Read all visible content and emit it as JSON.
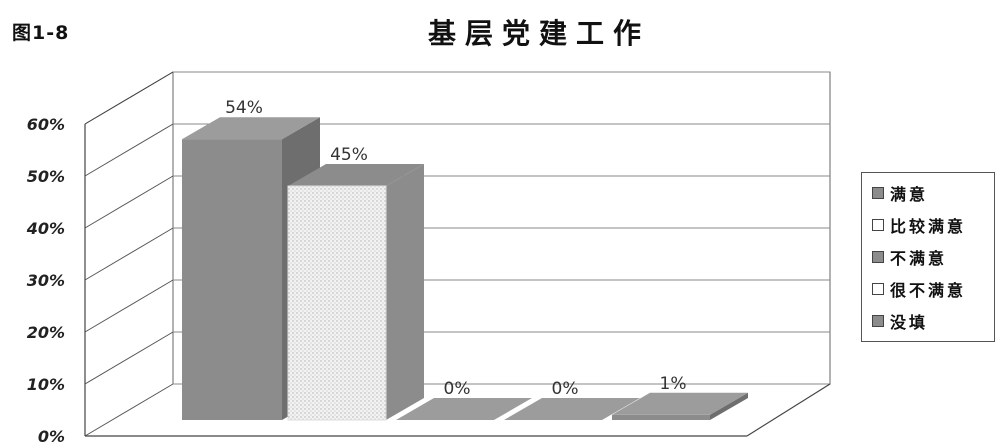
{
  "figure_label": "图1-8",
  "chart_data": {
    "type": "bar",
    "title": "基层党建工作",
    "categories": [
      "满意",
      "比较满意",
      "不满意",
      "很不满意",
      "没填"
    ],
    "values": [
      54,
      45,
      0,
      0,
      1
    ],
    "data_labels": [
      "54%",
      "45%",
      "0%",
      "0%",
      "1%"
    ],
    "y_ticks": [
      "0%",
      "10%",
      "20%",
      "30%",
      "40%",
      "50%",
      "60%"
    ],
    "ylim": [
      0,
      60
    ],
    "grid": true,
    "legend": "right",
    "legend_entries": [
      "满意",
      "比较满意",
      "不满意",
      "很不满意",
      "没填"
    ],
    "colors": {
      "dark": "#8c8c8c",
      "dark_side": "#6e6e6e",
      "dark_top": "#9c9c9c",
      "light": "#eaeaea",
      "light_legend": "#ffffff"
    }
  }
}
